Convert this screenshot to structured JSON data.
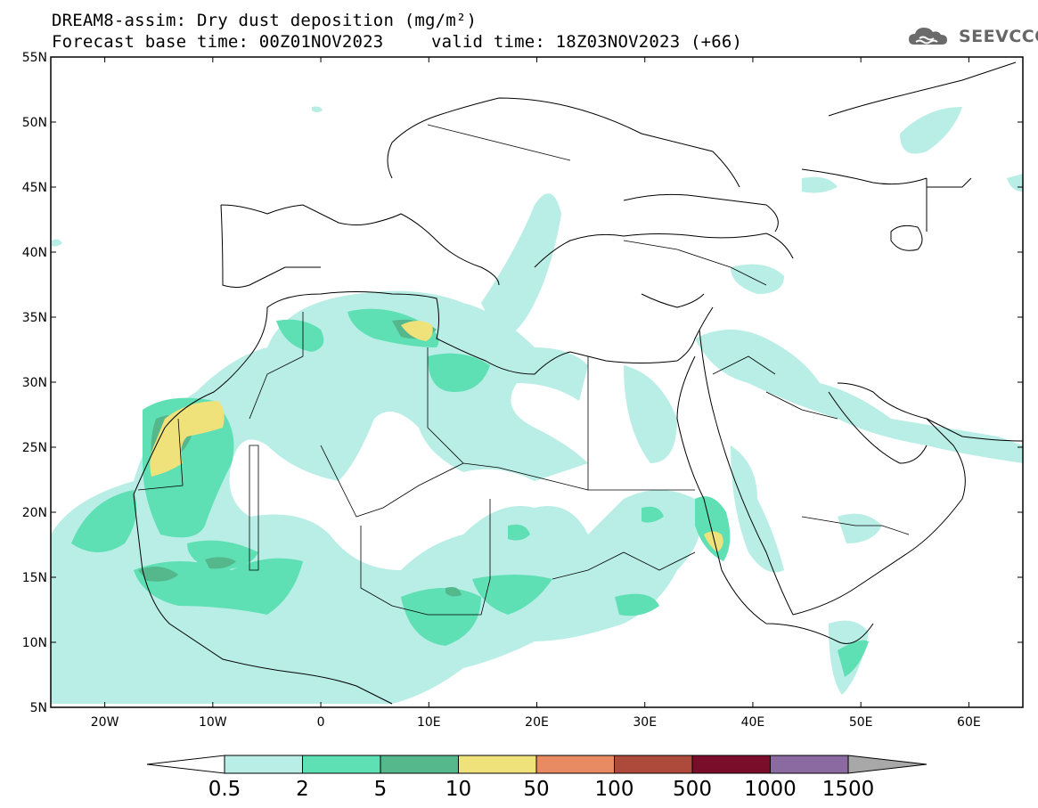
{
  "header": {
    "title_line1": "DREAM8-assim: Dry dust deposition (mg/m²)",
    "title_line2_left": "Forecast base time: 00Z01NOV2023",
    "title_line2_right": "valid time: 18Z03NOV2023 (+66)",
    "logo_text": "SEEVCCC"
  },
  "map": {
    "lon_range": [
      -25,
      65
    ],
    "lat_range": [
      5,
      55
    ],
    "lat_ticks": [
      "5N",
      "10N",
      "15N",
      "20N",
      "25N",
      "30N",
      "35N",
      "40N",
      "45N",
      "50N",
      "55N"
    ],
    "lon_ticks": [
      "20W",
      "10W",
      "0",
      "10E",
      "20E",
      "30E",
      "40E",
      "50E",
      "60E"
    ],
    "lon_tick_values": [
      -20,
      -10,
      0,
      10,
      20,
      30,
      40,
      50,
      60
    ],
    "lat_tick_values": [
      5,
      10,
      15,
      20,
      25,
      30,
      35,
      40,
      45,
      50,
      55
    ]
  },
  "colorbar": {
    "levels": [
      "0.5",
      "2",
      "5",
      "10",
      "50",
      "100",
      "500",
      "1000",
      "1500"
    ],
    "colors": [
      "#ffffff",
      "#b8eee6",
      "#5ee0b4",
      "#55b78c",
      "#f0e27a",
      "#e88a62",
      "#ad4a3c",
      "#7a0e2a",
      "#8a6aa0",
      "#a8a8a8"
    ]
  },
  "legend_colors": {
    "c1": "#b8eee6",
    "c2": "#5ee0b4",
    "c3": "#55b78c",
    "c4": "#f0e27a"
  }
}
